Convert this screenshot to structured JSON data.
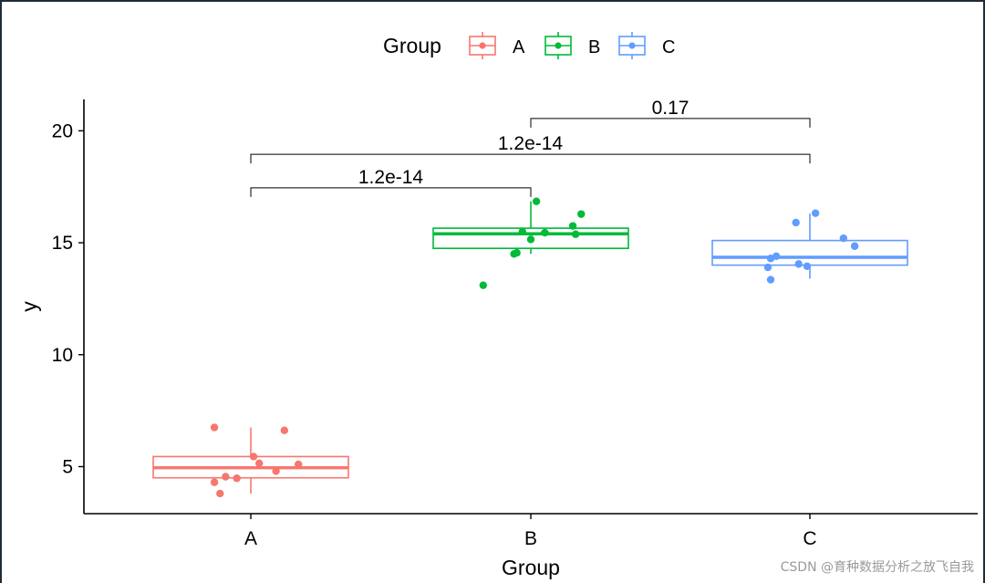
{
  "chart_data": {
    "type": "boxplot",
    "xlabel": "Group",
    "ylabel": "y",
    "ylim": [
      2.9,
      21.4
    ],
    "yticks": [
      5,
      10,
      15,
      20
    ],
    "categories": [
      "A",
      "B",
      "C"
    ],
    "legend": {
      "title": "Group",
      "position": "top",
      "entries": [
        "A",
        "B",
        "C"
      ]
    },
    "colors": {
      "A": "#F8766D",
      "B": "#00BA38",
      "C": "#619CFF"
    },
    "grid": false,
    "boxes": [
      {
        "group": "A",
        "whisker_low": 3.8,
        "q1": 4.5,
        "median": 4.95,
        "q3": 5.45,
        "whisker_high": 6.75
      },
      {
        "group": "B",
        "whisker_low": 14.5,
        "q1": 14.75,
        "median": 15.4,
        "q3": 15.65,
        "whisker_high": 16.85
      },
      {
        "group": "C",
        "whisker_low": 13.4,
        "q1": 14.0,
        "median": 14.35,
        "q3": 15.1,
        "whisker_high": 16.3
      }
    ],
    "points": [
      {
        "group": "A",
        "values": [
          6.75,
          6.62,
          5.45,
          5.15,
          5.1,
          4.8,
          4.55,
          4.48,
          4.3,
          3.8
        ],
        "jitter": [
          -0.13,
          0.12,
          0.01,
          0.03,
          0.17,
          0.09,
          -0.09,
          -0.05,
          -0.13,
          -0.11
        ]
      },
      {
        "group": "B",
        "values": [
          16.85,
          16.28,
          15.75,
          15.5,
          15.45,
          15.38,
          15.15,
          14.55,
          14.5,
          13.1
        ],
        "jitter": [
          0.02,
          0.18,
          0.15,
          -0.03,
          0.05,
          0.16,
          0.0,
          -0.05,
          -0.06,
          -0.17
        ]
      },
      {
        "group": "C",
        "values": [
          16.32,
          15.9,
          15.2,
          14.85,
          14.4,
          14.3,
          14.05,
          13.95,
          13.9,
          13.35
        ],
        "jitter": [
          0.02,
          -0.05,
          0.12,
          0.16,
          -0.12,
          -0.14,
          -0.04,
          -0.01,
          -0.15,
          -0.14
        ]
      }
    ],
    "comparisons": [
      {
        "group1": "A",
        "group2": "B",
        "label": "1.2e-14",
        "y": 17.45
      },
      {
        "group1": "A",
        "group2": "C",
        "label": "1.2e-14",
        "y": 18.95
      },
      {
        "group1": "B",
        "group2": "C",
        "label": "0.17",
        "y": 20.55
      }
    ]
  },
  "watermark": "CSDN @育种数据分析之放飞自我"
}
